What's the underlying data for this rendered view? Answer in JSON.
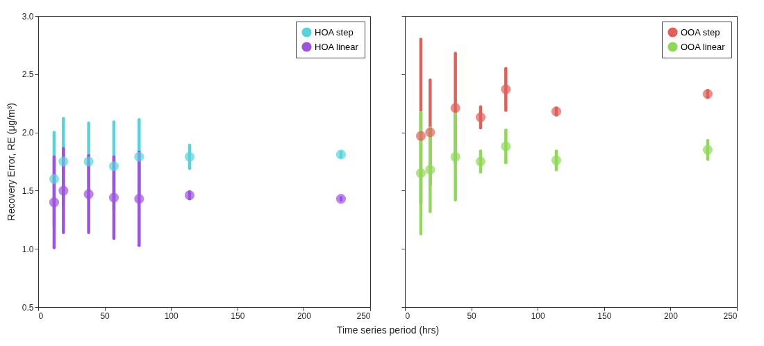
{
  "chart_data": [
    {
      "type": "scatter",
      "ylabel": "Recovery Error, RE (μg/m³)",
      "xlabel": "Time series period (hrs)",
      "x": [
        12,
        19,
        38,
        57,
        76,
        114,
        228
      ],
      "xlim": [
        0,
        250
      ],
      "xticks": [
        0,
        50,
        100,
        150,
        200,
        250
      ],
      "ylim": [
        0.5,
        3.0
      ],
      "yticks": [
        0.5,
        {
          "value": 1,
          "label": "1.0"
        },
        1.5,
        {
          "value": 2,
          "label": "2.0"
        },
        2.5,
        {
          "value": 3,
          "label": "3.0"
        }
      ],
      "legend": "top right",
      "marker": "circle",
      "grid": false,
      "series": [
        {
          "name": "HOA step",
          "color": "#56d4da",
          "values": [
            1.6,
            1.75,
            1.75,
            1.71,
            1.79,
            1.79,
            1.81
          ],
          "errors": [
            0.4,
            0.37,
            0.33,
            0.38,
            0.32,
            0.1,
            0.02
          ]
        },
        {
          "name": "HOA linear",
          "color": "#9d52e0",
          "values": [
            1.4,
            1.5,
            1.47,
            1.44,
            1.43,
            1.46,
            1.43
          ],
          "errors": [
            0.39,
            0.36,
            0.33,
            0.35,
            0.4,
            0.03,
            0.01
          ]
        }
      ]
    },
    {
      "type": "scatter",
      "x": [
        12,
        19,
        38,
        57,
        76,
        114,
        228
      ],
      "xlim": [
        0,
        250
      ],
      "xticks": [
        0,
        50,
        100,
        150,
        200,
        250
      ],
      "ylim": [
        0.5,
        3.0
      ],
      "yticks": [
        0.5,
        1,
        1.5,
        2,
        2.5,
        3
      ],
      "tick_labels": "x",
      "legend": "top right",
      "marker": "circle",
      "grid": false,
      "series": [
        {
          "name": "OOA step",
          "color": "#e0605a",
          "values": [
            1.97,
            2.0,
            2.21,
            2.13,
            2.37,
            2.18,
            2.33
          ],
          "errors": [
            [
              1.39,
              2.8
            ],
            0.45,
            0.47,
            0.09,
            0.18,
            0.03,
            0.03
          ]
        },
        {
          "name": "OOA linear",
          "color": "#8fd957",
          "values": [
            1.65,
            1.68,
            1.79,
            1.75,
            1.88,
            1.76,
            1.85
          ],
          "errors": [
            0.52,
            0.36,
            0.37,
            0.09,
            0.14,
            0.08,
            0.08
          ]
        }
      ]
    }
  ]
}
